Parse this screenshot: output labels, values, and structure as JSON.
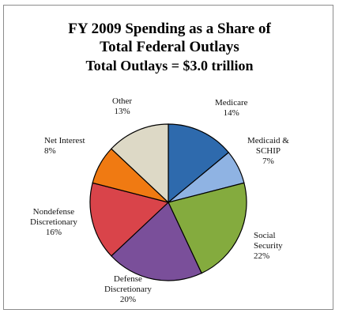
{
  "chart_data": {
    "type": "pie",
    "title": "FY 2009 Spending as a Share of",
    "title_line2": "Total Federal Outlays",
    "subtitle": "Total Outlays = $3.0 trillion",
    "slices": [
      {
        "label_lines": [
          "Medicare"
        ],
        "pct_label": "14%",
        "value": 14,
        "color": "#2e6aad"
      },
      {
        "label_lines": [
          "Medicaid &",
          "SCHIP"
        ],
        "pct_label": "7%",
        "value": 7,
        "color": "#8fb3e3"
      },
      {
        "label_lines": [
          "Social",
          "Security"
        ],
        "pct_label": "22%",
        "value": 22,
        "color": "#84ab3e"
      },
      {
        "label_lines": [
          "Defense",
          "Discretionary"
        ],
        "pct_label": "20%",
        "value": 20,
        "color": "#7a4f9a"
      },
      {
        "label_lines": [
          "Nondefense",
          "Discretionary"
        ],
        "pct_label": "16%",
        "value": 16,
        "color": "#d9444a"
      },
      {
        "label_lines": [
          "Net Interest"
        ],
        "pct_label": "8%",
        "value": 8,
        "color": "#f07a12"
      },
      {
        "label_lines": [
          "Other"
        ],
        "pct_label": "13%",
        "value": 13,
        "color": "#ddd9c6"
      }
    ]
  }
}
